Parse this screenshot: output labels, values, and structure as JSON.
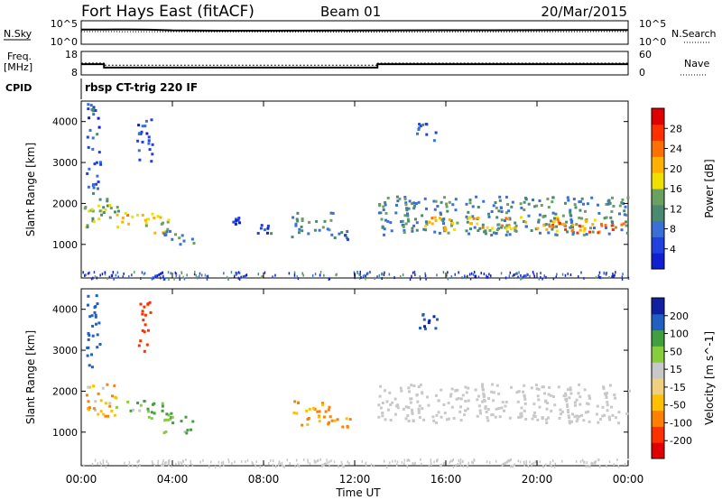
{
  "header": {
    "station": "Fort Hays East (fitACF)",
    "beam": "Beam 01",
    "date": "20/Mar/2015"
  },
  "strip": {
    "nsky_label": "N.Sky",
    "nsearch_label": "N.Search",
    "noise_ticks": [
      "10^5",
      "10^0"
    ],
    "freq_label": "Freq.",
    "freq_unit": "[MHz]",
    "freq_ticks": [
      "18",
      "8"
    ],
    "nave_label": "Nave",
    "nave_ticks": [
      "60",
      "0"
    ],
    "cpid_label": "CPID",
    "cpid_text": "rbsp CT-trig 220 IF"
  },
  "colors": {
    "power": [
      "#1020d0",
      "#2040e0",
      "#3a6fd8",
      "#4a8a70",
      "#6aa060",
      "#f0e000",
      "#ffb000",
      "#ff7000",
      "#ff3000",
      "#e00000"
    ],
    "velocity": [
      "#e00000",
      "#ff3000",
      "#ff8000",
      "#ffc000",
      "#f0d080",
      "#c8c8c8",
      "#88cc40",
      "#40a040",
      "#2060c0",
      "#1020a0"
    ],
    "ground_scatter": "#c8c8c8"
  },
  "chart_data": [
    {
      "type": "line",
      "title": "",
      "ylabel": "N.Sky",
      "yscale": "log",
      "ylim": [
        1,
        100000
      ],
      "series": [
        {
          "name": "N.Sky",
          "x": [
            "00:00",
            "00:30",
            "01:00",
            "02:00",
            "03:00",
            "04:00",
            "06:00",
            "08:00",
            "10:00",
            "12:00",
            "14:00",
            "16:00",
            "18:00",
            "20:00",
            "22:00",
            "24:00"
          ],
          "values": [
            3000,
            3000,
            3000,
            3200,
            2800,
            1800,
            1500,
            1500,
            1600,
            1700,
            1900,
            2000,
            2000,
            2100,
            2200,
            2200
          ]
        },
        {
          "name": "N.Search",
          "x": [
            "00:00",
            "06:00",
            "12:00",
            "18:00",
            "24:00"
          ],
          "values": [
            900,
            800,
            700,
            800,
            900
          ]
        }
      ]
    },
    {
      "type": "line",
      "title": "",
      "ylabel": "Freq. [MHz]",
      "ylim": [
        8,
        18
      ],
      "y2label": "Nave",
      "y2lim": [
        0,
        60
      ],
      "series": [
        {
          "name": "Freq.",
          "x": [
            "00:00",
            "01:00",
            "01:00",
            "13:00",
            "13:00",
            "24:00"
          ],
          "values": [
            12.5,
            12.5,
            10.8,
            10.8,
            12.5,
            12.5
          ]
        },
        {
          "name": "Nave",
          "x": [
            "00:00",
            "01:00",
            "01:00",
            "13:00",
            "13:00",
            "24:00"
          ],
          "values": [
            30,
            30,
            24,
            24,
            30,
            30
          ]
        }
      ]
    },
    {
      "type": "heatmap",
      "title": "rbsp CT-trig 220 IF",
      "xlabel": "Time UT",
      "ylabel": "Slant Range [km]",
      "xlim": [
        "00:00",
        "24:00"
      ],
      "ylim": [
        180,
        4500
      ],
      "x_ticks": [
        "00:00",
        "04:00",
        "08:00",
        "12:00",
        "16:00",
        "20:00",
        "00:00"
      ],
      "y_ticks": [
        1000,
        2000,
        3000,
        4000
      ],
      "colorbar": {
        "label": "Power [dB]",
        "ticks": [
          4,
          8,
          12,
          16,
          20,
          24,
          28
        ],
        "range": [
          0,
          30
        ]
      },
      "regions": [
        {
          "t0": 0.1,
          "t1": 1.6,
          "r0": 1400,
          "r1": 2200,
          "value": 14
        },
        {
          "t0": 0.2,
          "t1": 0.8,
          "r0": 2200,
          "r1": 4500,
          "value": 6
        },
        {
          "t0": 1.4,
          "t1": 2.9,
          "r0": 1500,
          "r1": 1800,
          "value": 20
        },
        {
          "t0": 2.4,
          "t1": 3.1,
          "r0": 3000,
          "r1": 4200,
          "value": 5
        },
        {
          "t0": 2.8,
          "t1": 3.9,
          "r0": 1300,
          "r1": 1800,
          "value": 18
        },
        {
          "t0": 3.5,
          "t1": 4.9,
          "r0": 1000,
          "r1": 1400,
          "value": 10
        },
        {
          "t0": 6.5,
          "t1": 7.0,
          "r0": 1500,
          "r1": 1700,
          "value": 4
        },
        {
          "t0": 7.7,
          "t1": 8.3,
          "r0": 1250,
          "r1": 1500,
          "value": 6
        },
        {
          "t0": 9.2,
          "t1": 11.0,
          "r0": 1200,
          "r1": 1800,
          "value": 10
        },
        {
          "t0": 10.7,
          "t1": 11.9,
          "r0": 1150,
          "r1": 1400,
          "value": 8
        },
        {
          "t0": 14.6,
          "t1": 15.6,
          "r0": 3550,
          "r1": 4000,
          "value": 8
        },
        {
          "t0": 13.0,
          "t1": 24.0,
          "r0": 1250,
          "r1": 2200,
          "value": 10
        },
        {
          "t0": 15.0,
          "t1": 22.5,
          "r0": 1350,
          "r1": 1700,
          "value": 18
        },
        {
          "t0": 20.5,
          "t1": 24.0,
          "r0": 1300,
          "r1": 1550,
          "value": 22
        }
      ]
    },
    {
      "type": "heatmap",
      "title": "",
      "xlabel": "Time UT",
      "ylabel": "Slant Range [km]",
      "xlim": [
        "00:00",
        "24:00"
      ],
      "ylim": [
        180,
        4500
      ],
      "x_ticks": [
        "00:00",
        "04:00",
        "08:00",
        "12:00",
        "16:00",
        "20:00",
        "00:00"
      ],
      "y_ticks": [
        1000,
        2000,
        3000,
        4000
      ],
      "colorbar": {
        "label": "Velocity [m s^-1]",
        "ticks": [
          200,
          100,
          50,
          15,
          -15,
          -50,
          -100,
          -200
        ]
      },
      "regions": [
        {
          "t0": 0.1,
          "t1": 1.6,
          "r0": 1400,
          "r1": 2200,
          "value": -40
        },
        {
          "t0": 0.2,
          "t1": 0.8,
          "r0": 2600,
          "r1": 4400,
          "value": 150
        },
        {
          "t0": 1.4,
          "t1": 2.9,
          "r0": 1500,
          "r1": 1800,
          "value": 40
        },
        {
          "t0": 2.4,
          "t1": 3.0,
          "r0": 3000,
          "r1": 4200,
          "value": -150
        },
        {
          "t0": 2.8,
          "t1": 3.9,
          "r0": 1300,
          "r1": 1800,
          "value": 60
        },
        {
          "t0": 3.5,
          "t1": 4.9,
          "r0": 1000,
          "r1": 1400,
          "value": 40
        },
        {
          "t0": 9.2,
          "t1": 11.0,
          "r0": 1200,
          "r1": 1800,
          "value": -60
        },
        {
          "t0": 10.7,
          "t1": 11.9,
          "r0": 1150,
          "r1": 1400,
          "value": -60
        },
        {
          "t0": 14.6,
          "t1": 15.6,
          "r0": 3550,
          "r1": 4000,
          "value": 180
        },
        {
          "t0": 13.0,
          "t1": 24.0,
          "r0": 1250,
          "r1": 2200,
          "value": 0,
          "ground_scatter": true
        }
      ]
    }
  ]
}
